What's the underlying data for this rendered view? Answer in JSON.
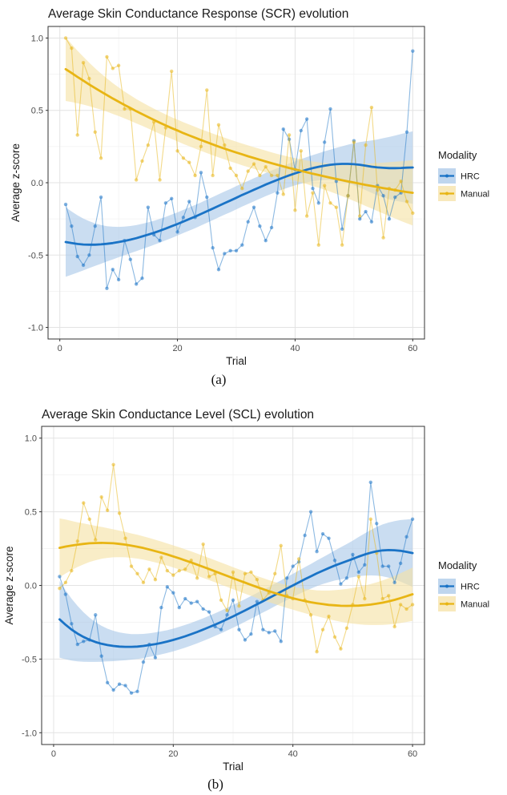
{
  "chart_data": [
    {
      "type": "line",
      "title": "Average Skin Conductance Response (SCR) evolution",
      "xlabel": "Trial",
      "ylabel": "Average z-score",
      "caption": "(a)",
      "xlim": [
        -2,
        62
      ],
      "ylim": [
        -1.08,
        1.08
      ],
      "xticks": [
        0,
        20,
        40,
        60
      ],
      "yticks": [
        -1.0,
        -0.5,
        0.0,
        0.5,
        1.0
      ],
      "ytick_labels": [
        "-1.0",
        "-0.5",
        "0.0",
        "0.5",
        "1.0"
      ],
      "legend": {
        "title": "Modality",
        "position": "right"
      },
      "series": [
        {
          "name": "HRC",
          "color": "#1a73c6",
          "fill": "#a9c8e8",
          "x": [
            1,
            2,
            3,
            4,
            5,
            6,
            7,
            8,
            9,
            10,
            11,
            12,
            13,
            14,
            15,
            16,
            17,
            18,
            19,
            20,
            21,
            22,
            23,
            24,
            25,
            26,
            27,
            28,
            29,
            30,
            31,
            32,
            33,
            34,
            35,
            36,
            37,
            38,
            39,
            40,
            41,
            42,
            43,
            44,
            45,
            46,
            47,
            48,
            49,
            50,
            51,
            52,
            53,
            54,
            55,
            56,
            57,
            58,
            59,
            60
          ],
          "values": [
            -0.15,
            -0.3,
            -0.51,
            -0.57,
            -0.5,
            -0.3,
            -0.1,
            -0.73,
            -0.6,
            -0.67,
            -0.4,
            -0.53,
            -0.7,
            -0.66,
            -0.17,
            -0.36,
            -0.4,
            -0.14,
            -0.11,
            -0.34,
            -0.24,
            -0.13,
            -0.24,
            0.07,
            -0.1,
            -0.45,
            -0.6,
            -0.49,
            -0.47,
            -0.47,
            -0.43,
            -0.27,
            -0.17,
            -0.3,
            -0.4,
            -0.31,
            -0.07,
            0.37,
            0.3,
            0.09,
            0.36,
            0.44,
            -0.04,
            -0.14,
            0.28,
            0.51,
            0.01,
            -0.32,
            -0.09,
            0.29,
            -0.25,
            -0.2,
            -0.27,
            -0.02,
            -0.09,
            -0.25,
            -0.1,
            -0.07,
            0.35,
            0.91
          ],
          "trend": [
            -0.41,
            -0.417,
            -0.423,
            -0.427,
            -0.428,
            -0.428,
            -0.426,
            -0.422,
            -0.417,
            -0.41,
            -0.402,
            -0.393,
            -0.383,
            -0.371,
            -0.359,
            -0.346,
            -0.332,
            -0.317,
            -0.301,
            -0.285,
            -0.268,
            -0.251,
            -0.234,
            -0.216,
            -0.197,
            -0.179,
            -0.16,
            -0.141,
            -0.123,
            -0.104,
            -0.085,
            -0.067,
            -0.049,
            -0.031,
            -0.013,
            0.004,
            0.02,
            0.036,
            0.051,
            0.065,
            0.078,
            0.09,
            0.101,
            0.11,
            0.118,
            0.124,
            0.128,
            0.13,
            0.13,
            0.128,
            0.124,
            0.118,
            0.111,
            0.106,
            0.103,
            0.101,
            0.101,
            0.102,
            0.104,
            0.105
          ],
          "ci_half": [
            0.24,
            0.218,
            0.198,
            0.179,
            0.162,
            0.147,
            0.134,
            0.122,
            0.113,
            0.105,
            0.099,
            0.094,
            0.09,
            0.087,
            0.085,
            0.083,
            0.082,
            0.081,
            0.081,
            0.08,
            0.08,
            0.08,
            0.08,
            0.08,
            0.08,
            0.08,
            0.08,
            0.08,
            0.08,
            0.08,
            0.08,
            0.08,
            0.08,
            0.08,
            0.08,
            0.08,
            0.08,
            0.081,
            0.082,
            0.083,
            0.085,
            0.087,
            0.09,
            0.094,
            0.099,
            0.105,
            0.113,
            0.122,
            0.133,
            0.145,
            0.157,
            0.169,
            0.181,
            0.193,
            0.205,
            0.215,
            0.225,
            0.234,
            0.242,
            0.25
          ]
        },
        {
          "name": "Manual",
          "color": "#e8b514",
          "fill": "#f6e2a5",
          "x": [
            1,
            2,
            3,
            4,
            5,
            6,
            7,
            8,
            9,
            10,
            11,
            12,
            13,
            14,
            15,
            16,
            17,
            18,
            19,
            20,
            21,
            22,
            23,
            24,
            25,
            26,
            27,
            28,
            29,
            30,
            31,
            32,
            33,
            34,
            35,
            36,
            37,
            38,
            39,
            40,
            41,
            42,
            43,
            44,
            45,
            46,
            47,
            48,
            49,
            50,
            51,
            52,
            53,
            54,
            55,
            56,
            57,
            58,
            59,
            60
          ],
          "values": [
            1.0,
            0.93,
            0.33,
            0.83,
            0.72,
            0.35,
            0.17,
            0.87,
            0.79,
            0.81,
            0.51,
            0.51,
            0.02,
            0.15,
            0.26,
            0.42,
            0.02,
            0.38,
            0.77,
            0.22,
            0.17,
            0.14,
            0.05,
            0.25,
            0.64,
            0.05,
            0.4,
            0.26,
            0.1,
            0.05,
            -0.04,
            0.08,
            0.13,
            0.05,
            0.11,
            0.05,
            0.05,
            -0.08,
            0.33,
            -0.19,
            0.22,
            -0.23,
            -0.07,
            -0.43,
            -0.02,
            -0.14,
            -0.17,
            -0.43,
            -0.09,
            0.28,
            -0.23,
            0.26,
            0.52,
            -0.05,
            -0.38,
            -0.04,
            -0.05,
            0.01,
            -0.13,
            -0.21
          ],
          "trend": [
            0.785,
            0.758,
            0.731,
            0.705,
            0.679,
            0.654,
            0.63,
            0.606,
            0.582,
            0.56,
            0.537,
            0.516,
            0.494,
            0.474,
            0.454,
            0.434,
            0.415,
            0.396,
            0.378,
            0.361,
            0.343,
            0.327,
            0.311,
            0.295,
            0.28,
            0.265,
            0.25,
            0.236,
            0.222,
            0.209,
            0.196,
            0.183,
            0.171,
            0.159,
            0.147,
            0.135,
            0.124,
            0.113,
            0.102,
            0.092,
            0.082,
            0.072,
            0.062,
            0.053,
            0.044,
            0.035,
            0.026,
            0.017,
            0.009,
            0.001,
            -0.007,
            -0.015,
            -0.022,
            -0.03,
            -0.037,
            -0.044,
            -0.051,
            -0.058,
            -0.064,
            -0.07
          ],
          "ci_half": [
            0.22,
            0.2,
            0.182,
            0.165,
            0.15,
            0.137,
            0.125,
            0.115,
            0.106,
            0.099,
            0.093,
            0.088,
            0.084,
            0.081,
            0.079,
            0.078,
            0.077,
            0.076,
            0.075,
            0.075,
            0.075,
            0.075,
            0.075,
            0.075,
            0.075,
            0.075,
            0.075,
            0.075,
            0.075,
            0.075,
            0.075,
            0.075,
            0.075,
            0.075,
            0.075,
            0.075,
            0.075,
            0.076,
            0.077,
            0.078,
            0.08,
            0.082,
            0.085,
            0.088,
            0.092,
            0.097,
            0.103,
            0.11,
            0.118,
            0.127,
            0.136,
            0.146,
            0.156,
            0.166,
            0.176,
            0.186,
            0.196,
            0.206,
            0.216,
            0.226
          ]
        }
      ]
    },
    {
      "type": "line",
      "title": "Average Skin Conductance Level (SCL) evolution",
      "xlabel": "Trial",
      "ylabel": "Average z-score",
      "caption": "(b)",
      "xlim": [
        -2,
        62
      ],
      "ylim": [
        -1.08,
        1.08
      ],
      "xticks": [
        0,
        20,
        40,
        60
      ],
      "yticks": [
        -1.0,
        -0.5,
        0.0,
        0.5,
        1.0
      ],
      "ytick_labels": [
        "-1.0",
        "-0.5",
        "0.0",
        "0.5",
        "1.0"
      ],
      "legend": {
        "title": "Modality",
        "position": "right"
      },
      "series": [
        {
          "name": "HRC",
          "color": "#1a73c6",
          "fill": "#a9c8e8",
          "x": [
            1,
            2,
            3,
            4,
            5,
            6,
            7,
            8,
            9,
            10,
            11,
            12,
            13,
            14,
            15,
            16,
            17,
            18,
            19,
            20,
            21,
            22,
            23,
            24,
            25,
            26,
            27,
            28,
            29,
            30,
            31,
            32,
            33,
            34,
            35,
            36,
            37,
            38,
            39,
            40,
            41,
            42,
            43,
            44,
            45,
            46,
            47,
            48,
            49,
            50,
            51,
            52,
            53,
            54,
            55,
            56,
            57,
            58,
            59,
            60
          ],
          "values": [
            0.06,
            -0.06,
            -0.26,
            -0.4,
            -0.38,
            -0.37,
            -0.2,
            -0.48,
            -0.66,
            -0.71,
            -0.67,
            -0.68,
            -0.73,
            -0.72,
            -0.52,
            -0.4,
            -0.49,
            -0.15,
            -0.01,
            -0.05,
            -0.15,
            -0.09,
            -0.12,
            -0.11,
            -0.16,
            -0.18,
            -0.28,
            -0.3,
            -0.2,
            -0.1,
            -0.3,
            -0.37,
            -0.33,
            -0.11,
            -0.3,
            -0.32,
            -0.31,
            -0.38,
            0.05,
            0.13,
            0.16,
            0.34,
            0.5,
            0.23,
            0.35,
            0.32,
            0.17,
            0.01,
            0.05,
            0.21,
            0.09,
            0.14,
            0.7,
            0.42,
            0.13,
            0.13,
            0.02,
            0.15,
            0.33,
            0.45
          ],
          "trend": [
            -0.23,
            -0.267,
            -0.3,
            -0.327,
            -0.35,
            -0.369,
            -0.384,
            -0.396,
            -0.405,
            -0.411,
            -0.415,
            -0.417,
            -0.417,
            -0.415,
            -0.411,
            -0.405,
            -0.398,
            -0.39,
            -0.381,
            -0.37,
            -0.358,
            -0.345,
            -0.331,
            -0.316,
            -0.3,
            -0.283,
            -0.266,
            -0.248,
            -0.229,
            -0.21,
            -0.19,
            -0.17,
            -0.149,
            -0.128,
            -0.107,
            -0.086,
            -0.064,
            -0.043,
            -0.021,
            0,
            0.021,
            0.042,
            0.062,
            0.082,
            0.1,
            0.118,
            0.135,
            0.15,
            0.165,
            0.18,
            0.196,
            0.21,
            0.222,
            0.232,
            0.238,
            0.24,
            0.239,
            0.235,
            0.228,
            0.22
          ],
          "ci_half": [
            0.26,
            0.234,
            0.21,
            0.188,
            0.168,
            0.15,
            0.135,
            0.122,
            0.111,
            0.103,
            0.096,
            0.091,
            0.087,
            0.084,
            0.082,
            0.08,
            0.079,
            0.078,
            0.077,
            0.077,
            0.077,
            0.077,
            0.077,
            0.077,
            0.077,
            0.077,
            0.077,
            0.077,
            0.077,
            0.077,
            0.077,
            0.077,
            0.077,
            0.077,
            0.077,
            0.077,
            0.077,
            0.077,
            0.078,
            0.079,
            0.08,
            0.082,
            0.084,
            0.087,
            0.091,
            0.096,
            0.102,
            0.109,
            0.116,
            0.124,
            0.133,
            0.143,
            0.154,
            0.165,
            0.176,
            0.187,
            0.198,
            0.209,
            0.22,
            0.23
          ]
        },
        {
          "name": "Manual",
          "color": "#e8b514",
          "fill": "#f6e2a5",
          "x": [
            1,
            2,
            3,
            4,
            5,
            6,
            7,
            8,
            9,
            10,
            11,
            12,
            13,
            14,
            15,
            16,
            17,
            18,
            19,
            20,
            21,
            22,
            23,
            24,
            25,
            26,
            27,
            28,
            29,
            30,
            31,
            32,
            33,
            34,
            35,
            36,
            37,
            38,
            39,
            40,
            41,
            42,
            43,
            44,
            45,
            46,
            47,
            48,
            49,
            50,
            51,
            52,
            53,
            54,
            55,
            56,
            57,
            58,
            59,
            60
          ],
          "values": [
            -0.02,
            0.02,
            0.1,
            0.3,
            0.56,
            0.45,
            0.31,
            0.6,
            0.51,
            0.82,
            0.49,
            0.32,
            0.13,
            0.08,
            0.02,
            0.11,
            0.04,
            0.19,
            0.1,
            0.07,
            0.1,
            0.11,
            0.17,
            0.05,
            0.28,
            0.06,
            0.08,
            -0.1,
            -0.17,
            0.09,
            -0.14,
            0.08,
            0.09,
            0.04,
            -0.1,
            -0.05,
            0.08,
            0.27,
            -0.07,
            -0.09,
            0.18,
            -0.1,
            -0.2,
            -0.45,
            -0.3,
            -0.21,
            -0.35,
            -0.43,
            -0.29,
            -0.13,
            0.06,
            -0.09,
            0.45,
            0.22,
            -0.09,
            -0.07,
            -0.28,
            -0.13,
            -0.16,
            -0.13
          ],
          "trend": [
            0.255,
            0.264,
            0.271,
            0.277,
            0.282,
            0.286,
            0.288,
            0.289,
            0.288,
            0.286,
            0.282,
            0.277,
            0.27,
            0.263,
            0.254,
            0.244,
            0.233,
            0.222,
            0.21,
            0.197,
            0.184,
            0.17,
            0.156,
            0.141,
            0.126,
            0.111,
            0.096,
            0.08,
            0.065,
            0.049,
            0.034,
            0.019,
            0.004,
            -0.011,
            -0.025,
            -0.039,
            -0.052,
            -0.064,
            -0.076,
            -0.087,
            -0.097,
            -0.106,
            -0.114,
            -0.121,
            -0.127,
            -0.132,
            -0.135,
            -0.138,
            -0.139,
            -0.138,
            -0.137,
            -0.134,
            -0.13,
            -0.124,
            -0.117,
            -0.108,
            -0.098,
            -0.086,
            -0.073,
            -0.06
          ],
          "ci_half": [
            0.2,
            0.183,
            0.167,
            0.152,
            0.139,
            0.127,
            0.117,
            0.108,
            0.101,
            0.095,
            0.09,
            0.086,
            0.083,
            0.081,
            0.079,
            0.078,
            0.077,
            0.076,
            0.075,
            0.075,
            0.075,
            0.075,
            0.075,
            0.075,
            0.075,
            0.075,
            0.075,
            0.075,
            0.075,
            0.075,
            0.075,
            0.075,
            0.075,
            0.075,
            0.075,
            0.075,
            0.075,
            0.076,
            0.077,
            0.078,
            0.08,
            0.082,
            0.085,
            0.088,
            0.092,
            0.097,
            0.103,
            0.109,
            0.115,
            0.121,
            0.127,
            0.133,
            0.139,
            0.145,
            0.151,
            0.157,
            0.163,
            0.169,
            0.175,
            0.181
          ]
        }
      ]
    }
  ]
}
